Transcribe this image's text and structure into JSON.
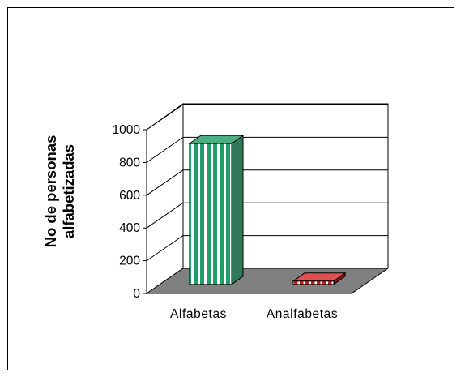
{
  "chart_data": {
    "type": "bar",
    "title": "",
    "categories": [
      "Alfabetas",
      "Analfabetas"
    ],
    "values": [
      860,
      20
    ],
    "ylabel_lines": [
      "No de personas",
      "alfabetizadas"
    ],
    "xlabel": "",
    "ylim": [
      0,
      1000
    ],
    "yticks": [
      0,
      200,
      400,
      600,
      800,
      1000
    ],
    "grid": true,
    "legend": "none",
    "colors": {
      "bar1_front": "#1f9e6a",
      "bar1_stripe": "#ffffff",
      "bar1_side": "#2e7a5a",
      "bar1_top": "#4caf82",
      "bar2_front": "#d01818",
      "bar2_stripe": "#ffffff",
      "floor": "#808080",
      "wall": "#ffffff"
    }
  }
}
